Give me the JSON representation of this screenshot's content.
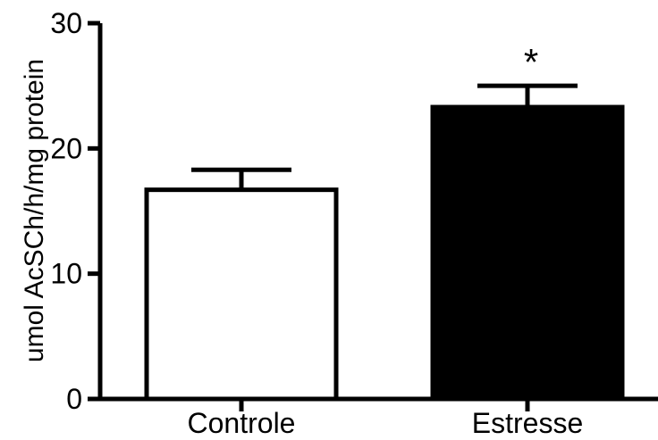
{
  "chart_data": {
    "type": "bar",
    "categories": [
      "Controle",
      "Estresse"
    ],
    "values": [
      16.7,
      23.3
    ],
    "errors": [
      1.6,
      1.7
    ],
    "bar_colors": [
      "#ffffff",
      "#000000"
    ],
    "ylabel": "umol AcSCh/h/mg protein",
    "xlabel": "",
    "ylim": [
      0,
      30
    ],
    "yticks": [
      0,
      10,
      20,
      30
    ],
    "annotations": [
      {
        "category": "Estresse",
        "text": "*"
      }
    ],
    "grid": false
  }
}
